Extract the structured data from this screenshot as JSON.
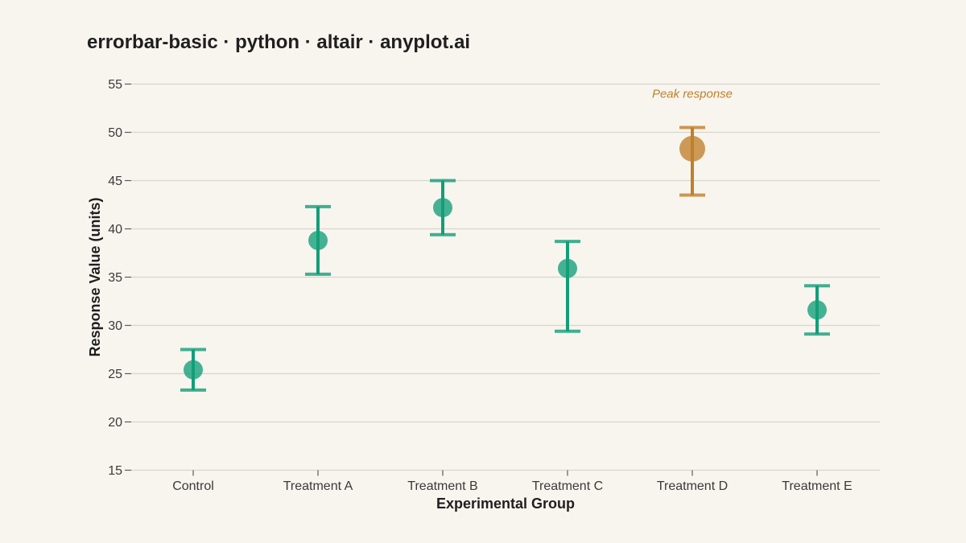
{
  "chart_data": {
    "type": "scatter",
    "title": "errorbar-basic · python · altair · anyplot.ai",
    "xlabel": "Experimental Group",
    "ylabel": "Response Value (units)",
    "categories": [
      "Control",
      "Treatment A",
      "Treatment B",
      "Treatment C",
      "Treatment D",
      "Treatment E"
    ],
    "values": [
      25.4,
      38.8,
      42.2,
      35.9,
      48.3,
      31.6
    ],
    "error_lower": [
      23.3,
      35.3,
      39.4,
      29.4,
      43.5,
      29.1
    ],
    "error_upper": [
      27.5,
      42.3,
      45.0,
      38.7,
      50.5,
      34.1
    ],
    "highlight_index": 4,
    "ylim": [
      15,
      55
    ],
    "yticks": [
      15,
      20,
      25,
      30,
      35,
      40,
      45,
      50,
      55
    ],
    "grid": true,
    "annotation": {
      "text": "Peak response",
      "category": "Treatment D",
      "y": 54
    }
  },
  "colors": {
    "background": "#F8F5EF",
    "primary": "#129E78",
    "highlight": "#C07F2A",
    "grid": "#D8D5D0",
    "axis": "#5a5a5a"
  }
}
